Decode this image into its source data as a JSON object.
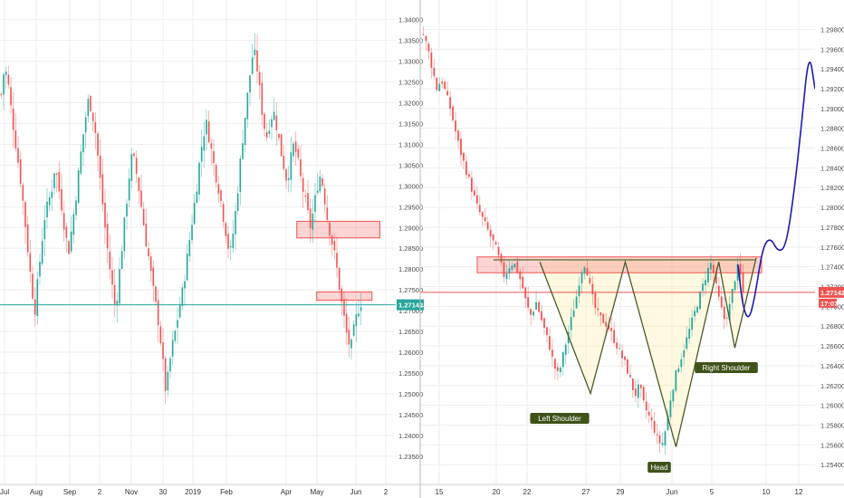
{
  "chart_data": [
    {
      "type": "candlestick",
      "title": "",
      "xlabel": "",
      "ylabel": "",
      "ylim": [
        1.232,
        1.341
      ],
      "x_ticks": [
        "Jul",
        "Aug",
        "Sep",
        "2",
        "Nov",
        "30",
        "2019",
        "Feb",
        "Apr",
        "May",
        "Jun",
        "2"
      ],
      "y_ticks": [
        "1.34000",
        "1.33500",
        "1.33000",
        "1.32500",
        "1.32000",
        "1.31500",
        "1.31000",
        "1.30500",
        "1.30000",
        "1.29500",
        "1.29000",
        "1.28500",
        "1.28000",
        "1.27500",
        "1.27000",
        "1.26500",
        "1.26000",
        "1.25500",
        "1.25000",
        "1.24500",
        "1.24000",
        "1.23500"
      ],
      "price_line": 1.27142,
      "price_label": "1.27142",
      "close_path": [
        1.322,
        1.329,
        1.325,
        1.318,
        1.312,
        1.306,
        1.3,
        1.292,
        1.284,
        1.276,
        1.27,
        1.278,
        1.286,
        1.293,
        1.296,
        1.299,
        1.305,
        1.3,
        1.295,
        1.289,
        1.284,
        1.29,
        1.296,
        1.303,
        1.31,
        1.316,
        1.321,
        1.318,
        1.313,
        1.305,
        1.297,
        1.289,
        1.282,
        1.276,
        1.27,
        1.278,
        1.286,
        1.294,
        1.302,
        1.308,
        1.304,
        1.299,
        1.293,
        1.287,
        1.282,
        1.276,
        1.271,
        1.266,
        1.258,
        1.25,
        1.257,
        1.262,
        1.266,
        1.271,
        1.275,
        1.281,
        1.287,
        1.293,
        1.299,
        1.306,
        1.312,
        1.315,
        1.311,
        1.306,
        1.302,
        1.298,
        1.293,
        1.288,
        1.283,
        1.289,
        1.296,
        1.305,
        1.313,
        1.32,
        1.327,
        1.333,
        1.329,
        1.322,
        1.315,
        1.312,
        1.316,
        1.318,
        1.314,
        1.309,
        1.305,
        1.301,
        1.306,
        1.31,
        1.307,
        1.302,
        1.298,
        1.294,
        1.29,
        1.295,
        1.3,
        1.303,
        1.298,
        1.292,
        1.288,
        1.284,
        1.279,
        1.273,
        1.268,
        1.263,
        1.261,
        1.266,
        1.27,
        1.272
      ],
      "zones": [
        {
          "y_top": 1.2915,
          "y_bottom": 1.2875,
          "x_start": 0.75,
          "x_end": 0.96
        },
        {
          "y_top": 1.2745,
          "y_bottom": 1.2725,
          "x_start": 0.8,
          "x_end": 0.94
        }
      ]
    },
    {
      "type": "candlestick",
      "title": "",
      "xlabel": "",
      "ylabel": "",
      "ylim": [
        1.2536,
        1.2994
      ],
      "x_ticks": [
        "15",
        "20",
        "22",
        "27",
        "29",
        "Jun",
        "5",
        "10",
        "12"
      ],
      "y_ticks": [
        "1.29800",
        "1.29600",
        "1.29400",
        "1.29200",
        "1.29000",
        "1.28800",
        "1.28600",
        "1.28400",
        "1.28200",
        "1.28000",
        "1.27800",
        "1.27600",
        "1.27400",
        "1.27200",
        "1.27000",
        "1.26800",
        "1.26600",
        "1.26400",
        "1.26200",
        "1.26000",
        "1.25800",
        "1.25600",
        "1.25400"
      ],
      "price_line": 1.27142,
      "price_label": "1.27142",
      "price_sublabel": "17:07",
      "pattern_labels": [
        "Left Shoulder",
        "Head",
        "Right Shoulder"
      ],
      "pattern_points": [
        {
          "t": 0.19,
          "p": 1.2745
        },
        {
          "t": 0.38,
          "p": 1.2612
        },
        {
          "t": 0.51,
          "p": 1.2745
        },
        {
          "t": 0.7,
          "p": 1.2558
        },
        {
          "t": 0.86,
          "p": 1.2745
        },
        {
          "t": 0.92,
          "p": 1.2658
        },
        {
          "t": 1.0,
          "p": 1.2749
        }
      ],
      "resistance_zone": {
        "y_top": 1.275,
        "y_bottom": 1.2734
      },
      "neckline": 1.2747,
      "close_path": [
        1.2975,
        1.296,
        1.294,
        1.292,
        1.293,
        1.2915,
        1.29,
        1.288,
        1.286,
        1.2845,
        1.283,
        1.2815,
        1.28,
        1.279,
        1.278,
        1.277,
        1.276,
        1.2745,
        1.273,
        1.274,
        1.2745,
        1.2735,
        1.272,
        1.27,
        1.269,
        1.2705,
        1.269,
        1.2675,
        1.266,
        1.264,
        1.263,
        1.265,
        1.267,
        1.269,
        1.271,
        1.2735,
        1.2745,
        1.272,
        1.27,
        1.269,
        1.2685,
        1.268,
        1.267,
        1.266,
        1.265,
        1.264,
        1.2625,
        1.261,
        1.262,
        1.26,
        1.259,
        1.258,
        1.2565,
        1.256,
        1.258,
        1.261,
        1.263,
        1.2645,
        1.266,
        1.2675,
        1.269,
        1.2705,
        1.272,
        1.2735,
        1.2745,
        1.272,
        1.27,
        1.2685,
        1.27,
        1.2725,
        1.2742,
        1.2714
      ],
      "projection_path": [
        {
          "t": 0.0,
          "p": 1.2742
        },
        {
          "t": 0.06,
          "p": 1.27
        },
        {
          "t": 0.14,
          "p": 1.2685
        },
        {
          "t": 0.22,
          "p": 1.271
        },
        {
          "t": 0.32,
          "p": 1.276
        },
        {
          "t": 0.42,
          "p": 1.277
        },
        {
          "t": 0.52,
          "p": 1.2755
        },
        {
          "t": 0.62,
          "p": 1.276
        },
        {
          "t": 0.72,
          "p": 1.281
        },
        {
          "t": 0.82,
          "p": 1.288
        },
        {
          "t": 0.92,
          "p": 1.296
        },
        {
          "t": 1.0,
          "p": 1.292
        }
      ]
    }
  ]
}
